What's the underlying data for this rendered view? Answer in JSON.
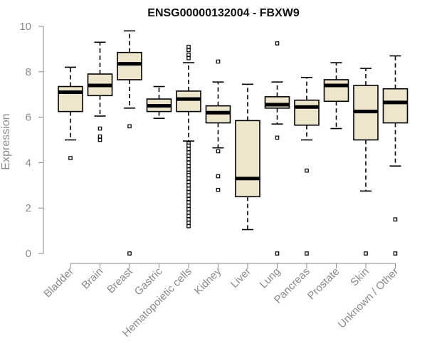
{
  "chart_data": {
    "type": "boxplot",
    "title": "ENSG00000132004 - FBXW9",
    "xlabel": "",
    "ylabel": "Expression",
    "ylim": [
      0,
      10
    ],
    "yticks": [
      0,
      2,
      4,
      6,
      8,
      10
    ],
    "grid": false,
    "box_fill": "#ede5cc",
    "categories": [
      "Bladder",
      "Brain",
      "Breast",
      "Gastric",
      "Hematopoietic cells",
      "Kidney",
      "Liver",
      "Lung",
      "Pancreas",
      "Prostate",
      "Skin",
      "Unknown / Other"
    ],
    "boxes": [
      {
        "whisker_low": 5.0,
        "q1": 6.25,
        "median": 7.1,
        "q3": 7.35,
        "whisker_high": 8.2,
        "outliers": [
          4.2
        ]
      },
      {
        "whisker_low": 6.05,
        "q1": 6.95,
        "median": 7.4,
        "q3": 7.9,
        "whisker_high": 9.3,
        "outliers": [
          5.0,
          5.15,
          5.5
        ]
      },
      {
        "whisker_low": 6.4,
        "q1": 7.65,
        "median": 8.35,
        "q3": 8.85,
        "whisker_high": 9.8,
        "outliers": [
          5.6,
          0.0
        ]
      },
      {
        "whisker_low": 5.95,
        "q1": 6.25,
        "median": 6.5,
        "q3": 6.8,
        "whisker_high": 7.35,
        "outliers": []
      },
      {
        "whisker_low": 4.95,
        "q1": 6.25,
        "median": 6.8,
        "q3": 7.15,
        "whisker_high": 8.4,
        "outliers": [
          9.1,
          8.95,
          8.75,
          8.6,
          4.85,
          4.75,
          4.6,
          4.45,
          4.3,
          4.15,
          4.0,
          3.85,
          3.7,
          3.55,
          3.45,
          3.3,
          3.15,
          3.0,
          2.85,
          2.7,
          2.55,
          2.4,
          2.25,
          2.1,
          1.95,
          1.8,
          1.65,
          1.5,
          1.35,
          1.2
        ]
      },
      {
        "whisker_low": 4.65,
        "q1": 5.75,
        "median": 6.2,
        "q3": 6.5,
        "whisker_high": 7.55,
        "outliers": [
          8.45,
          4.5,
          3.4,
          2.8
        ]
      },
      {
        "whisker_low": 1.05,
        "q1": 2.5,
        "median": 3.3,
        "q3": 5.85,
        "whisker_high": 7.45,
        "outliers": []
      },
      {
        "whisker_low": 5.7,
        "q1": 6.4,
        "median": 6.55,
        "q3": 6.9,
        "whisker_high": 7.55,
        "outliers": [
          9.25,
          5.1,
          0.0
        ]
      },
      {
        "whisker_low": 5.0,
        "q1": 5.65,
        "median": 6.45,
        "q3": 6.75,
        "whisker_high": 7.75,
        "outliers": [
          3.65,
          0.0
        ]
      },
      {
        "whisker_low": 5.5,
        "q1": 6.7,
        "median": 7.4,
        "q3": 7.65,
        "whisker_high": 8.4,
        "outliers": []
      },
      {
        "whisker_low": 2.75,
        "q1": 5.0,
        "median": 6.25,
        "q3": 7.4,
        "whisker_high": 8.15,
        "outliers": [
          0.0
        ]
      },
      {
        "whisker_low": 3.85,
        "q1": 5.75,
        "median": 6.65,
        "q3": 7.25,
        "whisker_high": 8.7,
        "outliers": [
          1.5,
          0.0
        ]
      }
    ]
  }
}
